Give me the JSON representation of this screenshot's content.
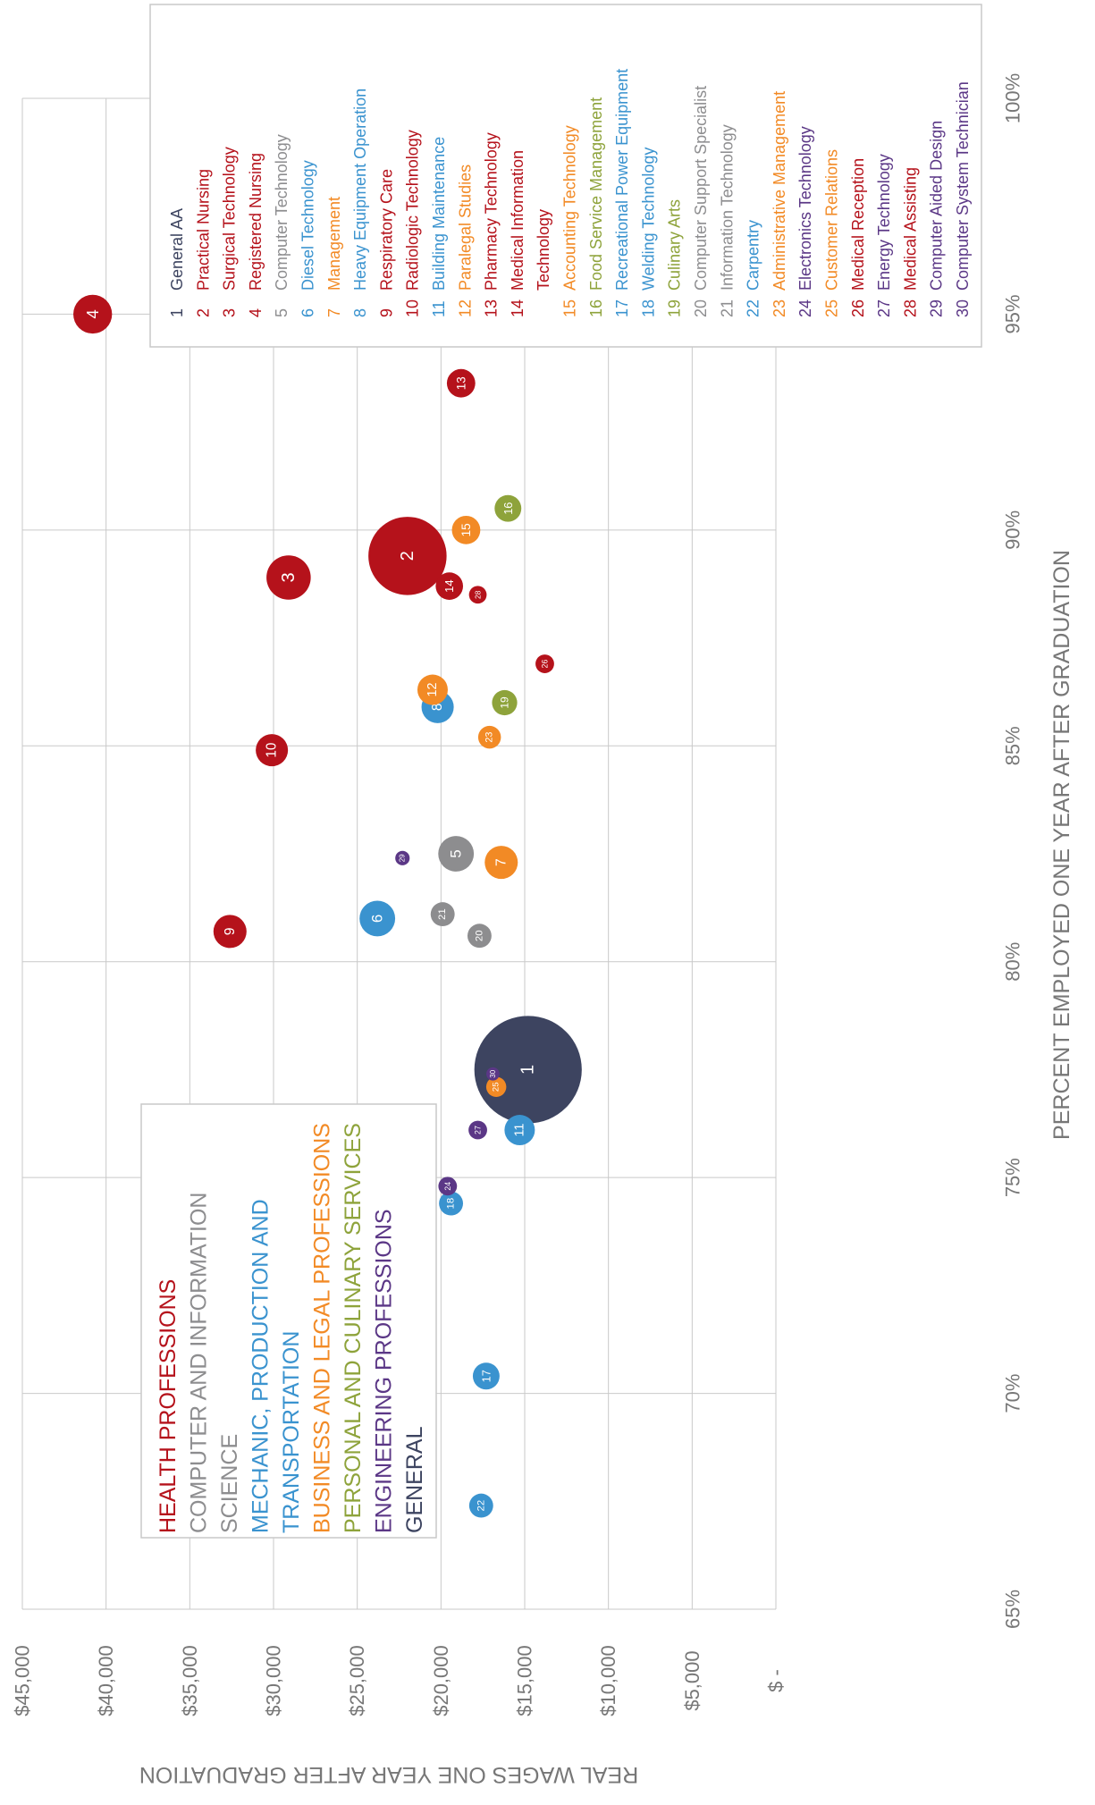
{
  "chart_data": {
    "type": "scatter",
    "subtype": "bubble",
    "orientation": "rotated-90-clockwise",
    "xlabel": "PERCENT EMPLOYED ONE YEAR AFTER GRADUATION",
    "ylabel": "REAL WAGES ONE YEAR AFTER GRADUATION",
    "xlim": [
      65,
      100
    ],
    "ylim": [
      0,
      45000
    ],
    "x_ticks": [
      {
        "value": 65,
        "label": "65%"
      },
      {
        "value": 70,
        "label": "70%"
      },
      {
        "value": 75,
        "label": "75%"
      },
      {
        "value": 80,
        "label": "80%"
      },
      {
        "value": 85,
        "label": "85%"
      },
      {
        "value": 90,
        "label": "90%"
      },
      {
        "value": 95,
        "label": "95%"
      },
      {
        "value": 100,
        "label": "100%"
      }
    ],
    "y_ticks": [
      {
        "value": 0,
        "label": "$ -"
      },
      {
        "value": 5000,
        "label": "$5,000"
      },
      {
        "value": 10000,
        "label": "$10,000"
      },
      {
        "value": 15000,
        "label": "$15,000"
      },
      {
        "value": 20000,
        "label": "$20,000"
      },
      {
        "value": 25000,
        "label": "$25,000"
      },
      {
        "value": 30000,
        "label": "$30,000"
      },
      {
        "value": 35000,
        "label": "$35,000"
      },
      {
        "value": 40000,
        "label": "$40,000"
      },
      {
        "value": 45000,
        "label": "$45,000"
      }
    ],
    "grid": true,
    "categories": [
      {
        "key": "health",
        "label": "HEALTH PROFESSIONS",
        "color": "#b5121b"
      },
      {
        "key": "computer",
        "label": "COMPUTER AND INFORMATION SCIENCE",
        "color": "#8d8d8f"
      },
      {
        "key": "mechanic",
        "label": "MECHANIC, PRODUCTION AND TRANSPORTATION",
        "color": "#3a93cf"
      },
      {
        "key": "business",
        "label": "BUSINESS AND LEGAL PROFESSIONS",
        "color": "#f28a25"
      },
      {
        "key": "personal",
        "label": "PERSONAL AND CULINARY SERVICES",
        "color": "#8ea33b"
      },
      {
        "key": "engineering",
        "label": "ENGINEERING PROFESSIONS",
        "color": "#5b3786"
      },
      {
        "key": "general",
        "label": "GENERAL",
        "color": "#3d4460"
      }
    ],
    "points": [
      {
        "id": "1",
        "name": "General AA",
        "category": "general",
        "x": 77.5,
        "y": 14800,
        "size": 10.0
      },
      {
        "id": "2",
        "name": "Practical Nursing",
        "category": "health",
        "x": 89.4,
        "y": 22000,
        "size": 5.3
      },
      {
        "id": "3",
        "name": "Surgical Technology",
        "category": "health",
        "x": 88.9,
        "y": 29100,
        "size": 1.7
      },
      {
        "id": "4",
        "name": "Registered Nursing",
        "category": "health",
        "x": 95.0,
        "y": 40800,
        "size": 1.3
      },
      {
        "id": "5",
        "name": "Computer Technology",
        "category": "computer",
        "x": 82.5,
        "y": 19100,
        "size": 1.1
      },
      {
        "id": "6",
        "name": "Diesel Technology",
        "category": "mechanic",
        "x": 81.0,
        "y": 23800,
        "size": 1.1
      },
      {
        "id": "7",
        "name": "Management",
        "category": "business",
        "x": 82.3,
        "y": 16400,
        "size": 0.95
      },
      {
        "id": "8",
        "name": "Heavy Equipment Operation",
        "category": "mechanic",
        "x": 85.9,
        "y": 20200,
        "size": 0.9
      },
      {
        "id": "9",
        "name": "Respiratory Care",
        "category": "health",
        "x": 80.7,
        "y": 32600,
        "size": 0.95
      },
      {
        "id": "10",
        "name": "Radiologic Technology",
        "category": "health",
        "x": 84.9,
        "y": 30100,
        "size": 0.9
      },
      {
        "id": "11",
        "name": "Building Maintenance",
        "category": "mechanic",
        "x": 76.1,
        "y": 15300,
        "size": 0.8
      },
      {
        "id": "12",
        "name": "Paralegal Studies",
        "category": "business",
        "x": 86.3,
        "y": 20500,
        "size": 0.8
      },
      {
        "id": "13",
        "name": "Pharmacy Technology",
        "category": "health",
        "x": 93.4,
        "y": 18800,
        "size": 0.7
      },
      {
        "id": "14",
        "name": "Medical Information Technology",
        "category": "health",
        "x": 88.7,
        "y": 19500,
        "size": 0.65
      },
      {
        "id": "15",
        "name": "Accounting Technology",
        "category": "business",
        "x": 90.0,
        "y": 18500,
        "size": 0.7
      },
      {
        "id": "16",
        "name": "Food Service Management",
        "category": "personal",
        "x": 90.5,
        "y": 16000,
        "size": 0.62
      },
      {
        "id": "17",
        "name": "Recreational Power Equipment",
        "category": "mechanic",
        "x": 70.4,
        "y": 17300,
        "size": 0.62
      },
      {
        "id": "18",
        "name": "Welding Technology",
        "category": "mechanic",
        "x": 74.4,
        "y": 19400,
        "size": 0.5
      },
      {
        "id": "19",
        "name": "Culinary Arts",
        "category": "personal",
        "x": 86.0,
        "y": 16200,
        "size": 0.55
      },
      {
        "id": "20",
        "name": "Computer Support Specialist",
        "category": "computer",
        "x": 80.6,
        "y": 17700,
        "size": 0.5
      },
      {
        "id": "21",
        "name": "Information Technology",
        "category": "computer",
        "x": 81.1,
        "y": 19900,
        "size": 0.5
      },
      {
        "id": "22",
        "name": "Carpentry",
        "category": "mechanic",
        "x": 67.4,
        "y": 17600,
        "size": 0.5
      },
      {
        "id": "23",
        "name": "Administrative Management",
        "category": "business",
        "x": 85.2,
        "y": 17100,
        "size": 0.45
      },
      {
        "id": "24",
        "name": "Electronics Technology",
        "category": "engineering",
        "x": 74.8,
        "y": 19600,
        "size": 0.3
      },
      {
        "id": "25",
        "name": "Customer Relations",
        "category": "business",
        "x": 77.1,
        "y": 16700,
        "size": 0.35
      },
      {
        "id": "26",
        "name": "Medical Reception",
        "category": "health",
        "x": 86.9,
        "y": 13800,
        "size": 0.3
      },
      {
        "id": "27",
        "name": "Energy Technology",
        "category": "engineering",
        "x": 76.1,
        "y": 17800,
        "size": 0.3
      },
      {
        "id": "28",
        "name": "Medical Assisting",
        "category": "health",
        "x": 88.5,
        "y": 17800,
        "size": 0.27
      },
      {
        "id": "29",
        "name": "Computer Aided Design",
        "category": "engineering",
        "x": 82.4,
        "y": 22300,
        "size": 0.18
      },
      {
        "id": "30",
        "name": "Computer System Technician",
        "category": "engineering",
        "x": 77.4,
        "y": 16900,
        "size": 0.15
      }
    ]
  }
}
